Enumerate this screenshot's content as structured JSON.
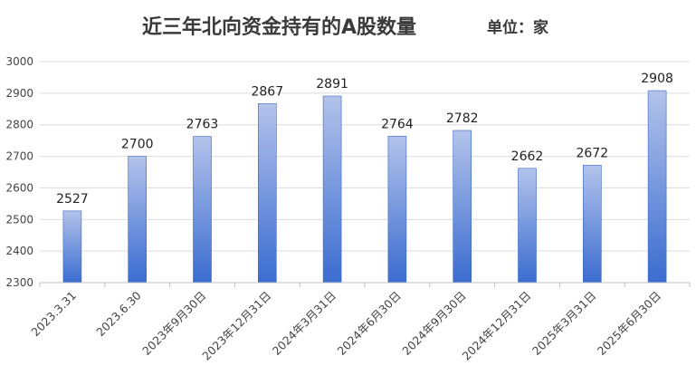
{
  "chart_data": {
    "type": "bar",
    "title": "近三年北向资金持有的A股数量",
    "unit": "单位：家",
    "categories": [
      "2023.3.31",
      "2023.6.30",
      "2023年9月30日",
      "2023年12月31日",
      "2024年3月31日",
      "2024年6月30日",
      "2024年9月30日",
      "2024年12月31日",
      "2025年3月31日",
      "2025年6月30日"
    ],
    "values": [
      2527,
      2700,
      2763,
      2867,
      2891,
      2764,
      2782,
      2662,
      2672,
      2908
    ],
    "ylim": [
      2300,
      3000
    ],
    "yticks": [
      "2300",
      "2400",
      "2500",
      "2600",
      "2700",
      "2800",
      "2900",
      "3000"
    ],
    "grid": true,
    "bar_gradient": [
      "#b3c3eb",
      "#3b6cd0"
    ]
  }
}
